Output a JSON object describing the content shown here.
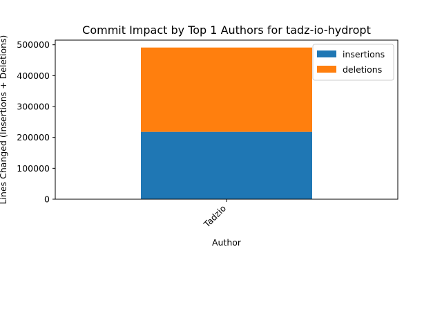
{
  "chart_data": {
    "type": "bar",
    "stacked": true,
    "title": "Commit Impact by Top 1 Authors for tadz-io-hydropt",
    "xlabel": "Author",
    "ylabel": "Lines Changed (Insertions + Deletions)",
    "categories": [
      "Tadzio"
    ],
    "series": [
      {
        "name": "insertions",
        "values": [
          218000
        ],
        "color": "#1f77b4"
      },
      {
        "name": "deletions",
        "values": [
          273000
        ],
        "color": "#ff7f0e"
      }
    ],
    "ylim": [
      0,
      515000
    ],
    "yticks": [
      0,
      100000,
      200000,
      300000,
      400000,
      500000
    ],
    "grid": false,
    "legend_position": "top-right"
  }
}
